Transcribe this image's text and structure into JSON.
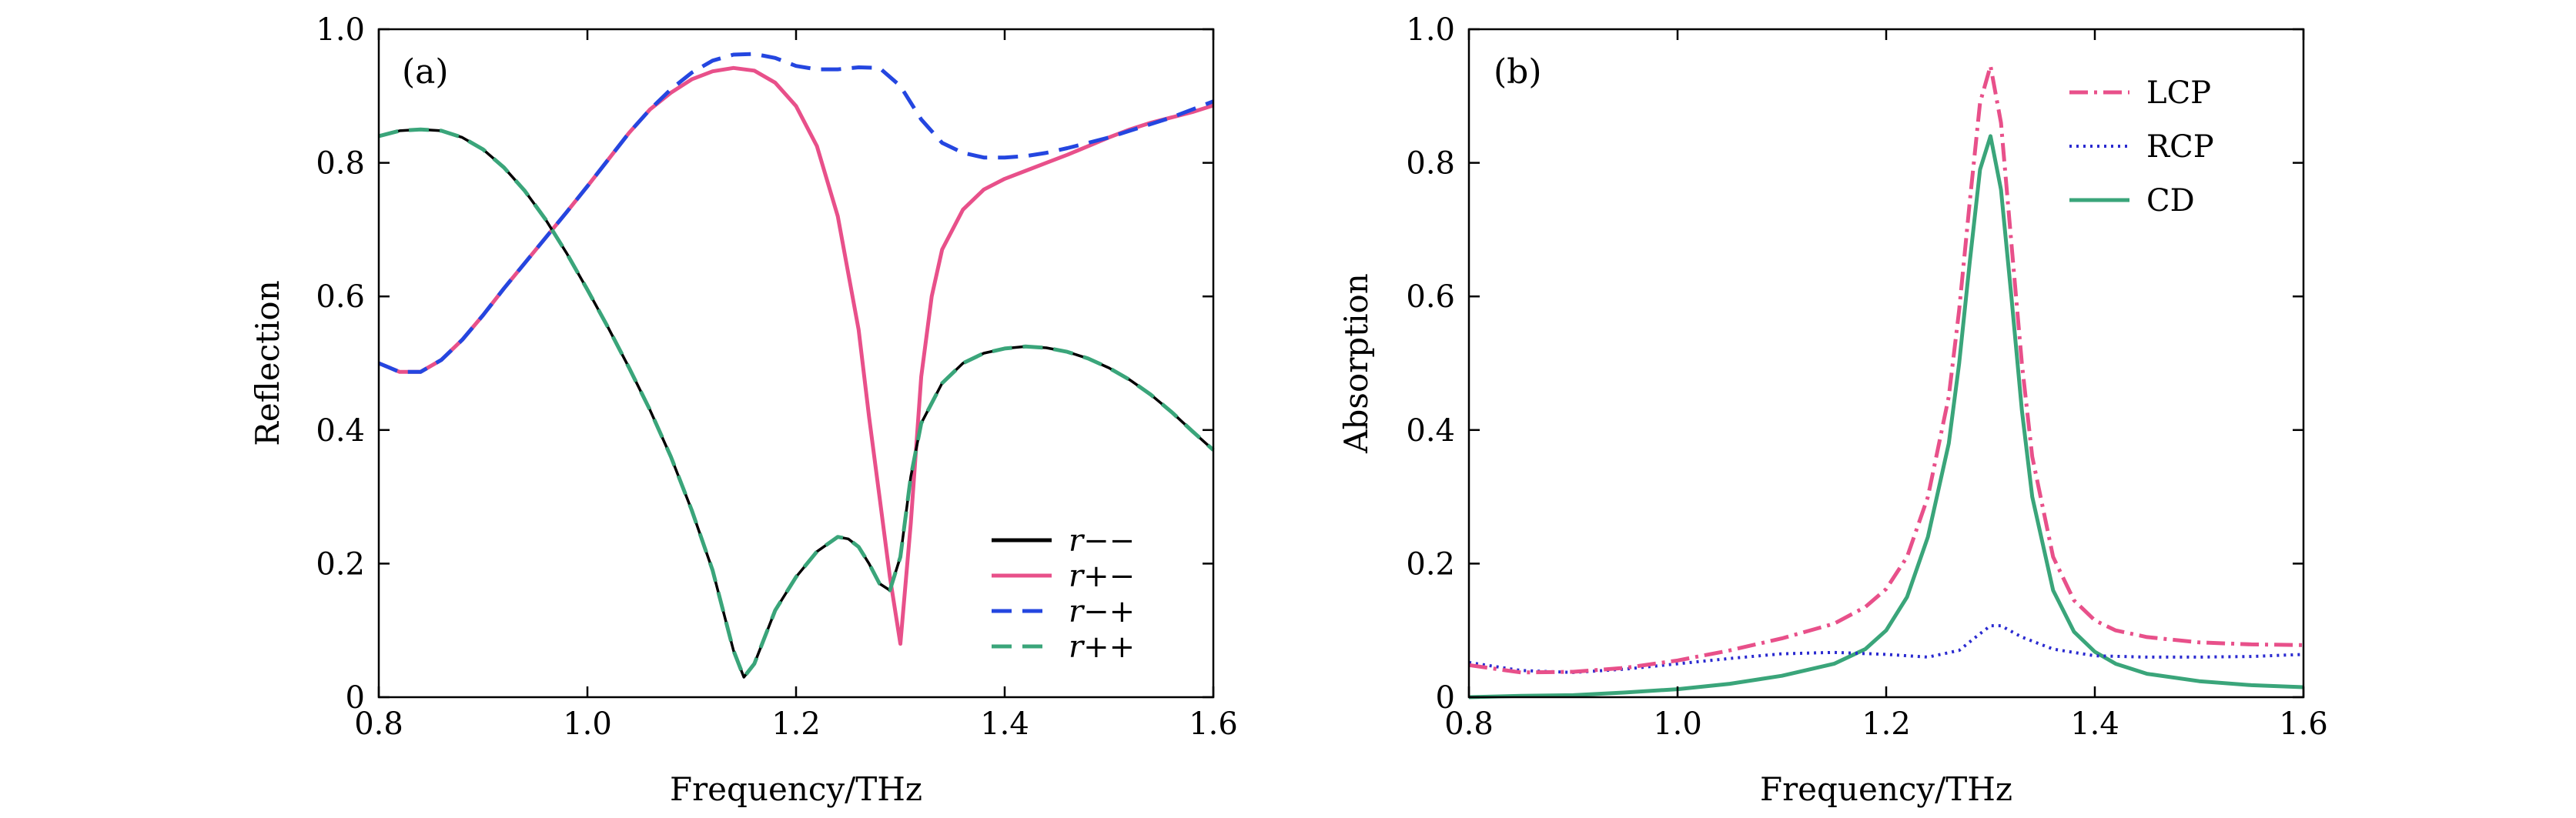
{
  "chart_data": [
    {
      "panel_label": "(a)",
      "type": "line",
      "xlabel": "Frequency/THz",
      "ylabel": "Reflection",
      "xlim": [
        0.8,
        1.6
      ],
      "ylim": [
        0,
        1.0
      ],
      "x_ticks": [
        "0.8",
        "1.0",
        "1.2",
        "1.4",
        "1.6"
      ],
      "y_ticks": [
        "0",
        "0.2",
        "0.4",
        "0.6",
        "0.8",
        "1.0"
      ],
      "legend_position": "lower-right",
      "series": [
        {
          "name": "r−−",
          "color": "#000000",
          "dash": "solid",
          "points": [
            [
              0.8,
              0.84
            ],
            [
              0.82,
              0.848
            ],
            [
              0.84,
              0.85
            ],
            [
              0.86,
              0.848
            ],
            [
              0.88,
              0.838
            ],
            [
              0.9,
              0.82
            ],
            [
              0.92,
              0.793
            ],
            [
              0.94,
              0.758
            ],
            [
              0.96,
              0.715
            ],
            [
              0.98,
              0.665
            ],
            [
              1.0,
              0.61
            ],
            [
              1.02,
              0.553
            ],
            [
              1.04,
              0.493
            ],
            [
              1.06,
              0.43
            ],
            [
              1.08,
              0.36
            ],
            [
              1.1,
              0.28
            ],
            [
              1.12,
              0.19
            ],
            [
              1.14,
              0.07
            ],
            [
              1.15,
              0.03
            ],
            [
              1.16,
              0.05
            ],
            [
              1.18,
              0.13
            ],
            [
              1.2,
              0.18
            ],
            [
              1.22,
              0.218
            ],
            [
              1.24,
              0.24
            ],
            [
              1.25,
              0.237
            ],
            [
              1.26,
              0.225
            ],
            [
              1.27,
              0.2
            ],
            [
              1.28,
              0.17
            ],
            [
              1.29,
              0.16
            ],
            [
              1.3,
              0.21
            ],
            [
              1.31,
              0.33
            ],
            [
              1.32,
              0.41
            ],
            [
              1.34,
              0.47
            ],
            [
              1.36,
              0.5
            ],
            [
              1.38,
              0.515
            ],
            [
              1.4,
              0.522
            ],
            [
              1.42,
              0.525
            ],
            [
              1.44,
              0.523
            ],
            [
              1.46,
              0.517
            ],
            [
              1.48,
              0.507
            ],
            [
              1.5,
              0.493
            ],
            [
              1.52,
              0.475
            ],
            [
              1.54,
              0.453
            ],
            [
              1.56,
              0.427
            ],
            [
              1.58,
              0.398
            ],
            [
              1.6,
              0.37
            ]
          ]
        },
        {
          "name": "r+−",
          "color": "#e8508a",
          "dash": "solid",
          "points": [
            [
              0.8,
              0.5
            ],
            [
              0.82,
              0.487
            ],
            [
              0.84,
              0.487
            ],
            [
              0.86,
              0.505
            ],
            [
              0.88,
              0.535
            ],
            [
              0.9,
              0.572
            ],
            [
              0.92,
              0.612
            ],
            [
              0.94,
              0.65
            ],
            [
              0.96,
              0.688
            ],
            [
              0.98,
              0.726
            ],
            [
              1.0,
              0.765
            ],
            [
              1.02,
              0.805
            ],
            [
              1.04,
              0.845
            ],
            [
              1.06,
              0.88
            ],
            [
              1.08,
              0.905
            ],
            [
              1.1,
              0.925
            ],
            [
              1.12,
              0.937
            ],
            [
              1.14,
              0.942
            ],
            [
              1.16,
              0.938
            ],
            [
              1.18,
              0.92
            ],
            [
              1.2,
              0.885
            ],
            [
              1.22,
              0.825
            ],
            [
              1.24,
              0.72
            ],
            [
              1.26,
              0.55
            ],
            [
              1.27,
              0.42
            ],
            [
              1.28,
              0.3
            ],
            [
              1.29,
              0.18
            ],
            [
              1.3,
              0.08
            ],
            [
              1.31,
              0.26
            ],
            [
              1.32,
              0.48
            ],
            [
              1.33,
              0.6
            ],
            [
              1.34,
              0.67
            ],
            [
              1.36,
              0.73
            ],
            [
              1.38,
              0.76
            ],
            [
              1.4,
              0.776
            ],
            [
              1.42,
              0.788
            ],
            [
              1.44,
              0.8
            ],
            [
              1.46,
              0.812
            ],
            [
              1.48,
              0.825
            ],
            [
              1.5,
              0.838
            ],
            [
              1.52,
              0.85
            ],
            [
              1.54,
              0.86
            ],
            [
              1.56,
              0.868
            ],
            [
              1.58,
              0.876
            ],
            [
              1.6,
              0.886
            ]
          ]
        },
        {
          "name": "r−+",
          "color": "#2446e0",
          "dash": "dashed",
          "points": [
            [
              0.8,
              0.5
            ],
            [
              0.82,
              0.487
            ],
            [
              0.84,
              0.487
            ],
            [
              0.86,
              0.505
            ],
            [
              0.88,
              0.535
            ],
            [
              0.9,
              0.572
            ],
            [
              0.92,
              0.612
            ],
            [
              0.94,
              0.65
            ],
            [
              0.96,
              0.688
            ],
            [
              0.98,
              0.726
            ],
            [
              1.0,
              0.765
            ],
            [
              1.02,
              0.805
            ],
            [
              1.04,
              0.845
            ],
            [
              1.06,
              0.88
            ],
            [
              1.08,
              0.91
            ],
            [
              1.1,
              0.935
            ],
            [
              1.12,
              0.953
            ],
            [
              1.14,
              0.962
            ],
            [
              1.16,
              0.963
            ],
            [
              1.18,
              0.957
            ],
            [
              1.2,
              0.945
            ],
            [
              1.22,
              0.94
            ],
            [
              1.24,
              0.94
            ],
            [
              1.26,
              0.943
            ],
            [
              1.28,
              0.942
            ],
            [
              1.3,
              0.915
            ],
            [
              1.32,
              0.865
            ],
            [
              1.34,
              0.83
            ],
            [
              1.36,
              0.815
            ],
            [
              1.38,
              0.808
            ],
            [
              1.4,
              0.808
            ],
            [
              1.42,
              0.81
            ],
            [
              1.44,
              0.815
            ],
            [
              1.46,
              0.822
            ],
            [
              1.48,
              0.83
            ],
            [
              1.5,
              0.838
            ],
            [
              1.52,
              0.848
            ],
            [
              1.54,
              0.858
            ],
            [
              1.56,
              0.868
            ],
            [
              1.58,
              0.88
            ],
            [
              1.6,
              0.892
            ]
          ]
        },
        {
          "name": "r++",
          "color": "#3aa57a",
          "dash": "dashed",
          "points": [
            [
              0.8,
              0.84
            ],
            [
              0.82,
              0.848
            ],
            [
              0.84,
              0.85
            ],
            [
              0.86,
              0.848
            ],
            [
              0.88,
              0.838
            ],
            [
              0.9,
              0.82
            ],
            [
              0.92,
              0.793
            ],
            [
              0.94,
              0.758
            ],
            [
              0.96,
              0.715
            ],
            [
              0.98,
              0.665
            ],
            [
              1.0,
              0.61
            ],
            [
              1.02,
              0.553
            ],
            [
              1.04,
              0.493
            ],
            [
              1.06,
              0.43
            ],
            [
              1.08,
              0.36
            ],
            [
              1.1,
              0.28
            ],
            [
              1.12,
              0.19
            ],
            [
              1.14,
              0.07
            ],
            [
              1.15,
              0.03
            ],
            [
              1.16,
              0.05
            ],
            [
              1.18,
              0.13
            ],
            [
              1.2,
              0.18
            ],
            [
              1.22,
              0.218
            ],
            [
              1.24,
              0.24
            ],
            [
              1.25,
              0.237
            ],
            [
              1.26,
              0.225
            ],
            [
              1.27,
              0.2
            ],
            [
              1.28,
              0.17
            ],
            [
              1.29,
              0.16
            ],
            [
              1.3,
              0.21
            ],
            [
              1.31,
              0.33
            ],
            [
              1.32,
              0.41
            ],
            [
              1.34,
              0.47
            ],
            [
              1.36,
              0.5
            ],
            [
              1.38,
              0.515
            ],
            [
              1.4,
              0.522
            ],
            [
              1.42,
              0.525
            ],
            [
              1.44,
              0.523
            ],
            [
              1.46,
              0.517
            ],
            [
              1.48,
              0.507
            ],
            [
              1.5,
              0.493
            ],
            [
              1.52,
              0.475
            ],
            [
              1.54,
              0.453
            ],
            [
              1.56,
              0.427
            ],
            [
              1.58,
              0.398
            ],
            [
              1.6,
              0.37
            ]
          ]
        }
      ]
    },
    {
      "panel_label": "(b)",
      "type": "line",
      "xlabel": "Frequency/THz",
      "ylabel": "Absorption",
      "xlim": [
        0.8,
        1.6
      ],
      "ylim": [
        0,
        1.0
      ],
      "x_ticks": [
        "0.8",
        "1.0",
        "1.2",
        "1.4",
        "1.6"
      ],
      "y_ticks": [
        "0",
        "0.2",
        "0.4",
        "0.6",
        "0.8",
        "1.0"
      ],
      "legend_position": "top-right",
      "series": [
        {
          "name": "LCP",
          "color": "#e8508a",
          "dash": "dashdot",
          "points": [
            [
              0.8,
              0.048
            ],
            [
              0.85,
              0.037
            ],
            [
              0.9,
              0.038
            ],
            [
              0.95,
              0.044
            ],
            [
              1.0,
              0.055
            ],
            [
              1.05,
              0.07
            ],
            [
              1.1,
              0.088
            ],
            [
              1.15,
              0.11
            ],
            [
              1.18,
              0.135
            ],
            [
              1.2,
              0.162
            ],
            [
              1.22,
              0.21
            ],
            [
              1.24,
              0.3
            ],
            [
              1.26,
              0.45
            ],
            [
              1.27,
              0.58
            ],
            [
              1.28,
              0.74
            ],
            [
              1.29,
              0.89
            ],
            [
              1.3,
              0.945
            ],
            [
              1.31,
              0.86
            ],
            [
              1.32,
              0.68
            ],
            [
              1.33,
              0.5
            ],
            [
              1.34,
              0.36
            ],
            [
              1.36,
              0.21
            ],
            [
              1.38,
              0.145
            ],
            [
              1.4,
              0.115
            ],
            [
              1.42,
              0.1
            ],
            [
              1.45,
              0.09
            ],
            [
              1.5,
              0.082
            ],
            [
              1.55,
              0.079
            ],
            [
              1.6,
              0.078
            ]
          ]
        },
        {
          "name": "RCP",
          "color": "#2a2ad0",
          "dash": "dotted",
          "points": [
            [
              0.8,
              0.052
            ],
            [
              0.85,
              0.04
            ],
            [
              0.9,
              0.037
            ],
            [
              0.95,
              0.042
            ],
            [
              1.0,
              0.05
            ],
            [
              1.05,
              0.058
            ],
            [
              1.1,
              0.065
            ],
            [
              1.15,
              0.067
            ],
            [
              1.2,
              0.064
            ],
            [
              1.24,
              0.06
            ],
            [
              1.27,
              0.07
            ],
            [
              1.29,
              0.095
            ],
            [
              1.3,
              0.107
            ],
            [
              1.31,
              0.107
            ],
            [
              1.33,
              0.09
            ],
            [
              1.36,
              0.072
            ],
            [
              1.4,
              0.062
            ],
            [
              1.45,
              0.06
            ],
            [
              1.5,
              0.06
            ],
            [
              1.55,
              0.061
            ],
            [
              1.6,
              0.064
            ]
          ]
        },
        {
          "name": "CD",
          "color": "#3aa57a",
          "dash": "solid",
          "points": [
            [
              0.8,
              0.0
            ],
            [
              0.85,
              0.002
            ],
            [
              0.9,
              0.003
            ],
            [
              0.95,
              0.007
            ],
            [
              1.0,
              0.012
            ],
            [
              1.05,
              0.02
            ],
            [
              1.1,
              0.032
            ],
            [
              1.15,
              0.05
            ],
            [
              1.18,
              0.072
            ],
            [
              1.2,
              0.1
            ],
            [
              1.22,
              0.15
            ],
            [
              1.24,
              0.24
            ],
            [
              1.26,
              0.38
            ],
            [
              1.27,
              0.5
            ],
            [
              1.28,
              0.65
            ],
            [
              1.29,
              0.79
            ],
            [
              1.3,
              0.84
            ],
            [
              1.31,
              0.76
            ],
            [
              1.32,
              0.6
            ],
            [
              1.33,
              0.43
            ],
            [
              1.34,
              0.3
            ],
            [
              1.36,
              0.16
            ],
            [
              1.38,
              0.098
            ],
            [
              1.4,
              0.068
            ],
            [
              1.42,
              0.05
            ],
            [
              1.45,
              0.035
            ],
            [
              1.5,
              0.024
            ],
            [
              1.55,
              0.018
            ],
            [
              1.6,
              0.015
            ]
          ]
        }
      ]
    }
  ]
}
